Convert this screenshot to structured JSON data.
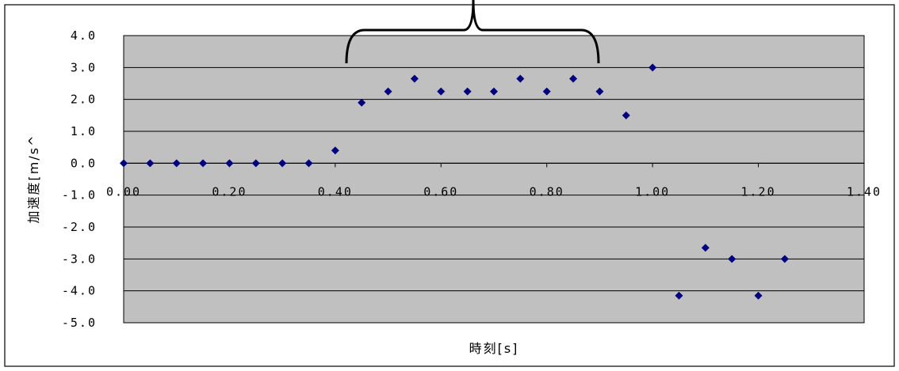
{
  "chart_data": {
    "type": "scatter",
    "title": "",
    "xlabel": "時刻[s]",
    "ylabel": "加速度[m/s^",
    "xlim": [
      0,
      1.4
    ],
    "ylim": [
      -5,
      4
    ],
    "x_ticks": [
      "0.00",
      "0.20",
      "0.40",
      "0.60",
      "0.80",
      "1.00",
      "1.20",
      "1.40"
    ],
    "y_ticks": [
      "4.0",
      "3.0",
      "2.0",
      "1.0",
      "0.0",
      "-1.0",
      "-2.0",
      "-3.0",
      "-4.0",
      "-5.0"
    ],
    "grid": "horizontal",
    "legend": "none",
    "colors": {
      "plot_background": "#c0c0c0",
      "marker": "#000080",
      "gridline": "#000000"
    },
    "annotation": "brace over the 0.43–0.90 s plateau",
    "series": [
      {
        "x": [
          0.0,
          0.05,
          0.1,
          0.15,
          0.2,
          0.25,
          0.3,
          0.35,
          0.4,
          0.45,
          0.5,
          0.55,
          0.6,
          0.65,
          0.7,
          0.75,
          0.8,
          0.85,
          0.9,
          0.95,
          1.0,
          1.05,
          1.1,
          1.15,
          1.2,
          1.25
        ],
        "y": [
          0.0,
          0.0,
          0.0,
          0.0,
          0.0,
          0.0,
          0.0,
          0.0,
          0.4,
          1.9,
          2.25,
          2.65,
          2.25,
          2.25,
          2.25,
          2.65,
          2.25,
          2.65,
          2.25,
          1.5,
          3.0,
          -4.15,
          -2.65,
          -3.0,
          -4.15,
          -3.0
        ]
      }
    ]
  }
}
